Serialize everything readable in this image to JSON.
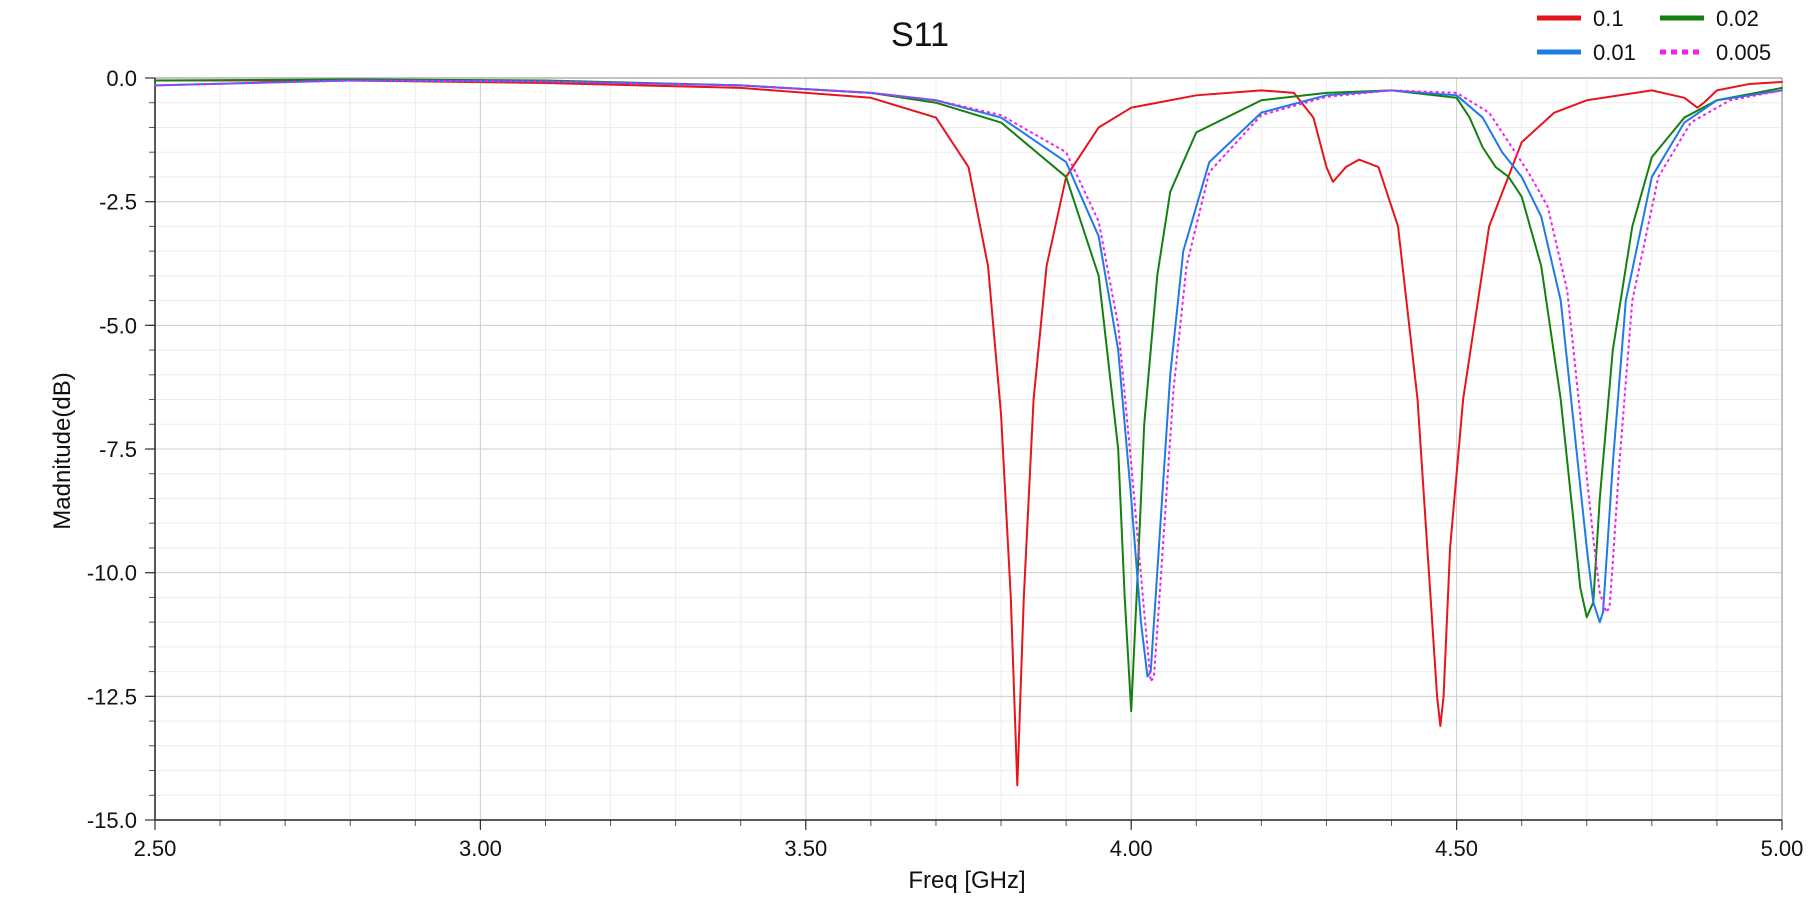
{
  "chart_data": {
    "type": "line",
    "title": "S11",
    "xlabel": "Freq [GHz]",
    "ylabel": "Madnitude(dB)",
    "xlim": [
      2.5,
      5.0
    ],
    "ylim": [
      -15.0,
      0.0
    ],
    "x_ticks": [
      2.5,
      3.0,
      3.5,
      4.0,
      4.5,
      5.0
    ],
    "x_tick_labels": [
      "2.50",
      "3.00",
      "3.50",
      "4.00",
      "4.50",
      "5.00"
    ],
    "y_ticks": [
      0.0,
      -2.5,
      -5.0,
      -7.5,
      -10.0,
      -12.5,
      -15.0
    ],
    "y_tick_labels": [
      "0.0",
      "-2.5",
      "-5.0",
      "-7.5",
      "-10.0",
      "-12.5",
      "-15.0"
    ],
    "grid": true,
    "legend_position": "top-right",
    "series": [
      {
        "name": "0.1",
        "color": "#e8141b",
        "style": "solid",
        "x": [
          2.5,
          2.8,
          3.1,
          3.4,
          3.6,
          3.7,
          3.75,
          3.78,
          3.8,
          3.815,
          3.825,
          3.835,
          3.85,
          3.87,
          3.9,
          3.95,
          4.0,
          4.1,
          4.2,
          4.25,
          4.28,
          4.3,
          4.31,
          4.33,
          4.35,
          4.38,
          4.41,
          4.44,
          4.46,
          4.47,
          4.475,
          4.48,
          4.49,
          4.51,
          4.55,
          4.6,
          4.65,
          4.7,
          4.8,
          4.85,
          4.87,
          4.88,
          4.9,
          4.95,
          5.0
        ],
        "y": [
          -0.05,
          -0.05,
          -0.1,
          -0.2,
          -0.4,
          -0.8,
          -1.8,
          -3.8,
          -6.8,
          -10.5,
          -14.3,
          -10.5,
          -6.5,
          -3.8,
          -2.0,
          -1.0,
          -0.6,
          -0.35,
          -0.25,
          -0.3,
          -0.8,
          -1.8,
          -2.1,
          -1.8,
          -1.65,
          -1.8,
          -3.0,
          -6.5,
          -10.5,
          -12.5,
          -13.1,
          -12.5,
          -9.5,
          -6.5,
          -3.0,
          -1.3,
          -0.7,
          -0.45,
          -0.25,
          -0.4,
          -0.6,
          -0.5,
          -0.25,
          -0.12,
          -0.08
        ]
      },
      {
        "name": "0.02",
        "color": "#13800f",
        "style": "solid",
        "x": [
          2.5,
          2.8,
          3.1,
          3.4,
          3.6,
          3.7,
          3.8,
          3.9,
          3.95,
          3.98,
          3.99,
          4.0,
          4.01,
          4.02,
          4.04,
          4.06,
          4.1,
          4.2,
          4.3,
          4.4,
          4.5,
          4.52,
          4.54,
          4.56,
          4.58,
          4.6,
          4.63,
          4.66,
          4.68,
          4.69,
          4.7,
          4.71,
          4.72,
          4.74,
          4.77,
          4.8,
          4.85,
          4.9,
          5.0
        ],
        "y": [
          -0.05,
          -0.03,
          -0.05,
          -0.15,
          -0.3,
          -0.5,
          -0.9,
          -2.0,
          -4.0,
          -7.5,
          -10.5,
          -12.8,
          -10.0,
          -7.0,
          -4.0,
          -2.3,
          -1.1,
          -0.45,
          -0.3,
          -0.25,
          -0.4,
          -0.8,
          -1.4,
          -1.8,
          -2.0,
          -2.4,
          -3.8,
          -6.5,
          -9.0,
          -10.3,
          -10.9,
          -10.6,
          -8.5,
          -5.5,
          -3.0,
          -1.6,
          -0.8,
          -0.45,
          -0.2
        ]
      },
      {
        "name": "0.01",
        "color": "#1e7be6",
        "style": "solid",
        "x": [
          2.5,
          2.8,
          3.1,
          3.4,
          3.6,
          3.7,
          3.8,
          3.9,
          3.95,
          3.98,
          4.0,
          4.015,
          4.025,
          4.03,
          4.04,
          4.06,
          4.08,
          4.12,
          4.2,
          4.3,
          4.4,
          4.5,
          4.54,
          4.57,
          4.6,
          4.63,
          4.66,
          4.68,
          4.7,
          4.71,
          4.72,
          4.725,
          4.73,
          4.74,
          4.76,
          4.8,
          4.85,
          4.9,
          5.0
        ],
        "y": [
          -0.15,
          -0.05,
          -0.07,
          -0.15,
          -0.3,
          -0.45,
          -0.8,
          -1.7,
          -3.2,
          -5.5,
          -8.5,
          -11.0,
          -12.1,
          -12.0,
          -10.0,
          -6.0,
          -3.5,
          -1.7,
          -0.7,
          -0.35,
          -0.25,
          -0.35,
          -0.8,
          -1.5,
          -2.0,
          -2.8,
          -4.5,
          -7.0,
          -9.5,
          -10.6,
          -11.0,
          -10.8,
          -9.8,
          -7.8,
          -4.5,
          -2.0,
          -0.9,
          -0.45,
          -0.25
        ]
      },
      {
        "name": "0.005",
        "color": "#f01ef0",
        "style": "dotted",
        "x": [
          2.5,
          2.8,
          3.1,
          3.4,
          3.6,
          3.7,
          3.8,
          3.9,
          3.95,
          3.98,
          4.0,
          4.02,
          4.03,
          4.035,
          4.045,
          4.065,
          4.085,
          4.12,
          4.2,
          4.3,
          4.4,
          4.5,
          4.55,
          4.58,
          4.61,
          4.64,
          4.67,
          4.69,
          4.71,
          4.72,
          4.73,
          4.735,
          4.74,
          4.75,
          4.77,
          4.81,
          4.86,
          4.92,
          5.0
        ],
        "y": [
          -0.15,
          -0.05,
          -0.07,
          -0.15,
          -0.3,
          -0.45,
          -0.75,
          -1.5,
          -2.9,
          -5.0,
          -7.8,
          -10.8,
          -12.2,
          -12.1,
          -10.2,
          -6.3,
          -3.8,
          -1.9,
          -0.75,
          -0.38,
          -0.25,
          -0.3,
          -0.7,
          -1.3,
          -1.9,
          -2.6,
          -4.3,
          -6.8,
          -9.3,
          -10.4,
          -10.8,
          -10.7,
          -9.8,
          -7.8,
          -4.5,
          -2.0,
          -0.9,
          -0.45,
          -0.25
        ]
      }
    ]
  }
}
